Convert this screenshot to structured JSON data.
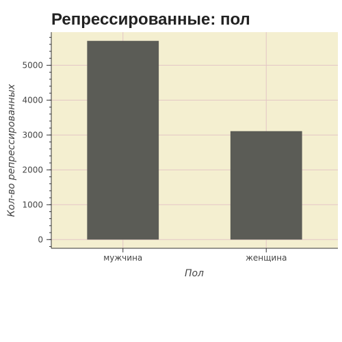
{
  "chart_data": {
    "type": "bar",
    "title": "Репрессированные: пол",
    "xlabel": "Пол",
    "ylabel": "Кол-во репрессированных",
    "categories": [
      "мужчина",
      "женщина"
    ],
    "values": [
      5700,
      3110
    ],
    "ylim": [
      -250,
      5950
    ],
    "yticks": [
      0,
      1000,
      2000,
      3000,
      4000,
      5000
    ],
    "grid": true,
    "legend": "none"
  },
  "colors": {
    "plot_background": "#f4efd0",
    "bar": "#5b5c56",
    "grid": "#e3c5c5",
    "axis": "#333333"
  }
}
